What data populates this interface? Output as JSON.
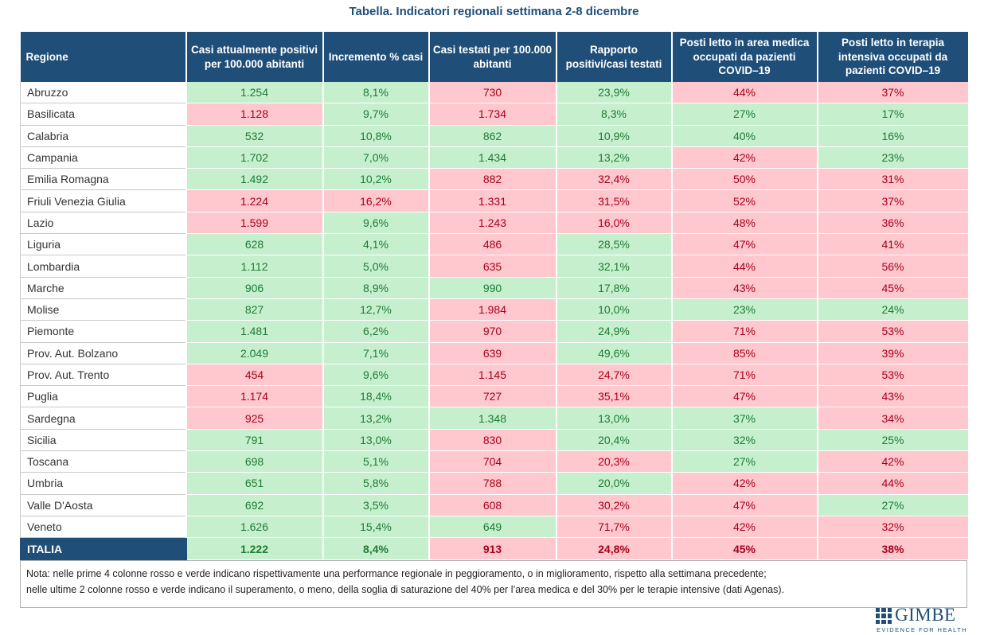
{
  "title": "Tabella. Indicatori regionali settimana 2-8 dicembre",
  "colors": {
    "header": "#1f4e79",
    "green_fill": "#c6efce",
    "red_fill": "#ffc7ce",
    "green_text": "#1e7b34",
    "red_text": "#a8001a"
  },
  "columns": [
    "Regione",
    "Casi attualmente positivi per 100.000 abitanti",
    "Incremento % casi",
    "Casi testati per 100.000 abitanti",
    "Rapporto positivi/casi testati",
    "Posti letto in area medica occupati da pazienti COVID–19",
    "Posti letto in terapia intensiva occupati da pazienti COVID–19"
  ],
  "rows": [
    {
      "region": "Abruzzo",
      "cells": [
        {
          "v": "1.254",
          "c": "g"
        },
        {
          "v": "8,1%",
          "c": "g"
        },
        {
          "v": "730",
          "c": "r"
        },
        {
          "v": "23,9%",
          "c": "g"
        },
        {
          "v": "44%",
          "c": "r"
        },
        {
          "v": "37%",
          "c": "r"
        }
      ]
    },
    {
      "region": "Basilicata",
      "cells": [
        {
          "v": "1.128",
          "c": "r"
        },
        {
          "v": "9,7%",
          "c": "g"
        },
        {
          "v": "1.734",
          "c": "r"
        },
        {
          "v": "8,3%",
          "c": "g"
        },
        {
          "v": "27%",
          "c": "g"
        },
        {
          "v": "17%",
          "c": "g"
        }
      ]
    },
    {
      "region": "Calabria",
      "cells": [
        {
          "v": "532",
          "c": "g"
        },
        {
          "v": "10,8%",
          "c": "g"
        },
        {
          "v": "862",
          "c": "g"
        },
        {
          "v": "10,9%",
          "c": "g"
        },
        {
          "v": "40%",
          "c": "g"
        },
        {
          "v": "16%",
          "c": "g"
        }
      ]
    },
    {
      "region": "Campania",
      "cells": [
        {
          "v": "1.702",
          "c": "g"
        },
        {
          "v": "7,0%",
          "c": "g"
        },
        {
          "v": "1.434",
          "c": "g"
        },
        {
          "v": "13,2%",
          "c": "g"
        },
        {
          "v": "42%",
          "c": "r"
        },
        {
          "v": "23%",
          "c": "g"
        }
      ]
    },
    {
      "region": "Emilia Romagna",
      "cells": [
        {
          "v": "1.492",
          "c": "g"
        },
        {
          "v": "10,2%",
          "c": "g"
        },
        {
          "v": "882",
          "c": "r"
        },
        {
          "v": "32,4%",
          "c": "r"
        },
        {
          "v": "50%",
          "c": "r"
        },
        {
          "v": "31%",
          "c": "r"
        }
      ]
    },
    {
      "region": "Friuli Venezia Giulia",
      "cells": [
        {
          "v": "1.224",
          "c": "r"
        },
        {
          "v": "16,2%",
          "c": "r"
        },
        {
          "v": "1.331",
          "c": "r"
        },
        {
          "v": "31,5%",
          "c": "r"
        },
        {
          "v": "52%",
          "c": "r"
        },
        {
          "v": "37%",
          "c": "r"
        }
      ]
    },
    {
      "region": "Lazio",
      "cells": [
        {
          "v": "1.599",
          "c": "r"
        },
        {
          "v": "9,6%",
          "c": "g"
        },
        {
          "v": "1.243",
          "c": "r"
        },
        {
          "v": "16,0%",
          "c": "r"
        },
        {
          "v": "48%",
          "c": "r"
        },
        {
          "v": "36%",
          "c": "r"
        }
      ]
    },
    {
      "region": "Liguria",
      "cells": [
        {
          "v": "628",
          "c": "g"
        },
        {
          "v": "4,1%",
          "c": "g"
        },
        {
          "v": "486",
          "c": "r"
        },
        {
          "v": "28,5%",
          "c": "g"
        },
        {
          "v": "47%",
          "c": "r"
        },
        {
          "v": "41%",
          "c": "r"
        }
      ]
    },
    {
      "region": "Lombardia",
      "cells": [
        {
          "v": "1.112",
          "c": "g"
        },
        {
          "v": "5,0%",
          "c": "g"
        },
        {
          "v": "635",
          "c": "r"
        },
        {
          "v": "32,1%",
          "c": "g"
        },
        {
          "v": "44%",
          "c": "r"
        },
        {
          "v": "56%",
          "c": "r"
        }
      ]
    },
    {
      "region": "Marche",
      "cells": [
        {
          "v": "906",
          "c": "g"
        },
        {
          "v": "8,9%",
          "c": "g"
        },
        {
          "v": "990",
          "c": "g"
        },
        {
          "v": "17,8%",
          "c": "g"
        },
        {
          "v": "43%",
          "c": "r"
        },
        {
          "v": "45%",
          "c": "r"
        }
      ]
    },
    {
      "region": "Molise",
      "cells": [
        {
          "v": "827",
          "c": "g"
        },
        {
          "v": "12,7%",
          "c": "g"
        },
        {
          "v": "1.984",
          "c": "r"
        },
        {
          "v": "10,0%",
          "c": "g"
        },
        {
          "v": "23%",
          "c": "g"
        },
        {
          "v": "24%",
          "c": "g"
        }
      ]
    },
    {
      "region": "Piemonte",
      "cells": [
        {
          "v": "1.481",
          "c": "g"
        },
        {
          "v": "6,2%",
          "c": "g"
        },
        {
          "v": "970",
          "c": "r"
        },
        {
          "v": "24,9%",
          "c": "g"
        },
        {
          "v": "71%",
          "c": "r"
        },
        {
          "v": "53%",
          "c": "r"
        }
      ]
    },
    {
      "region": "Prov. Aut. Bolzano",
      "cells": [
        {
          "v": "2.049",
          "c": "g"
        },
        {
          "v": "7,1%",
          "c": "g"
        },
        {
          "v": "639",
          "c": "r"
        },
        {
          "v": "49,6%",
          "c": "g"
        },
        {
          "v": "85%",
          "c": "r"
        },
        {
          "v": "39%",
          "c": "r"
        }
      ]
    },
    {
      "region": "Prov. Aut. Trento",
      "cells": [
        {
          "v": "454",
          "c": "r"
        },
        {
          "v": "9,6%",
          "c": "g"
        },
        {
          "v": "1.145",
          "c": "r"
        },
        {
          "v": "24,7%",
          "c": "r"
        },
        {
          "v": "71%",
          "c": "r"
        },
        {
          "v": "53%",
          "c": "r"
        }
      ]
    },
    {
      "region": "Puglia",
      "cells": [
        {
          "v": "1.174",
          "c": "r"
        },
        {
          "v": "18,4%",
          "c": "g"
        },
        {
          "v": "727",
          "c": "r"
        },
        {
          "v": "35,1%",
          "c": "r"
        },
        {
          "v": "47%",
          "c": "r"
        },
        {
          "v": "43%",
          "c": "r"
        }
      ]
    },
    {
      "region": "Sardegna",
      "cells": [
        {
          "v": "925",
          "c": "r"
        },
        {
          "v": "13,2%",
          "c": "g"
        },
        {
          "v": "1.348",
          "c": "g"
        },
        {
          "v": "13,0%",
          "c": "g"
        },
        {
          "v": "37%",
          "c": "g"
        },
        {
          "v": "34%",
          "c": "r"
        }
      ]
    },
    {
      "region": "Sicilia",
      "cells": [
        {
          "v": "791",
          "c": "g"
        },
        {
          "v": "13,0%",
          "c": "g"
        },
        {
          "v": "830",
          "c": "r"
        },
        {
          "v": "20,4%",
          "c": "g"
        },
        {
          "v": "32%",
          "c": "g"
        },
        {
          "v": "25%",
          "c": "g"
        }
      ]
    },
    {
      "region": "Toscana",
      "cells": [
        {
          "v": "698",
          "c": "g"
        },
        {
          "v": "5,1%",
          "c": "g"
        },
        {
          "v": "704",
          "c": "r"
        },
        {
          "v": "20,3%",
          "c": "r"
        },
        {
          "v": "27%",
          "c": "g"
        },
        {
          "v": "42%",
          "c": "r"
        }
      ]
    },
    {
      "region": "Umbria",
      "cells": [
        {
          "v": "651",
          "c": "g"
        },
        {
          "v": "5,8%",
          "c": "g"
        },
        {
          "v": "788",
          "c": "r"
        },
        {
          "v": "20,0%",
          "c": "g"
        },
        {
          "v": "42%",
          "c": "r"
        },
        {
          "v": "44%",
          "c": "r"
        }
      ]
    },
    {
      "region": "Valle D'Aosta",
      "cells": [
        {
          "v": "692",
          "c": "g"
        },
        {
          "v": "3,5%",
          "c": "g"
        },
        {
          "v": "608",
          "c": "r"
        },
        {
          "v": "30,2%",
          "c": "r"
        },
        {
          "v": "47%",
          "c": "r"
        },
        {
          "v": "27%",
          "c": "g"
        }
      ]
    },
    {
      "region": "Veneto",
      "cells": [
        {
          "v": "1.626",
          "c": "g"
        },
        {
          "v": "15,4%",
          "c": "g"
        },
        {
          "v": "649",
          "c": "g"
        },
        {
          "v": "71,7%",
          "c": "r"
        },
        {
          "v": "42%",
          "c": "r"
        },
        {
          "v": "32%",
          "c": "r"
        }
      ]
    }
  ],
  "total": {
    "region": "ITALIA",
    "cells": [
      {
        "v": "1.222",
        "c": "g"
      },
      {
        "v": "8,4%",
        "c": "g"
      },
      {
        "v": "913",
        "c": "r"
      },
      {
        "v": "24,8%",
        "c": "r"
      },
      {
        "v": "45%",
        "c": "r"
      },
      {
        "v": "38%",
        "c": "r"
      }
    ]
  },
  "note": {
    "line1": "Nota: nelle prime 4 colonne rosso e verde indicano rispettivamente una performance regionale in peggioramento, o in miglioramento, rispetto alla settimana precedente;",
    "line2": "nelle ultime 2 colonne rosso e verde indicano il superamento, o meno, della soglia di saturazione del 40% per l’area medica e del 30% per le terapie intensive (dati Agenas)."
  },
  "logo": {
    "name": "GIMBE",
    "tagline": "EVIDENCE FOR HEALTH"
  }
}
